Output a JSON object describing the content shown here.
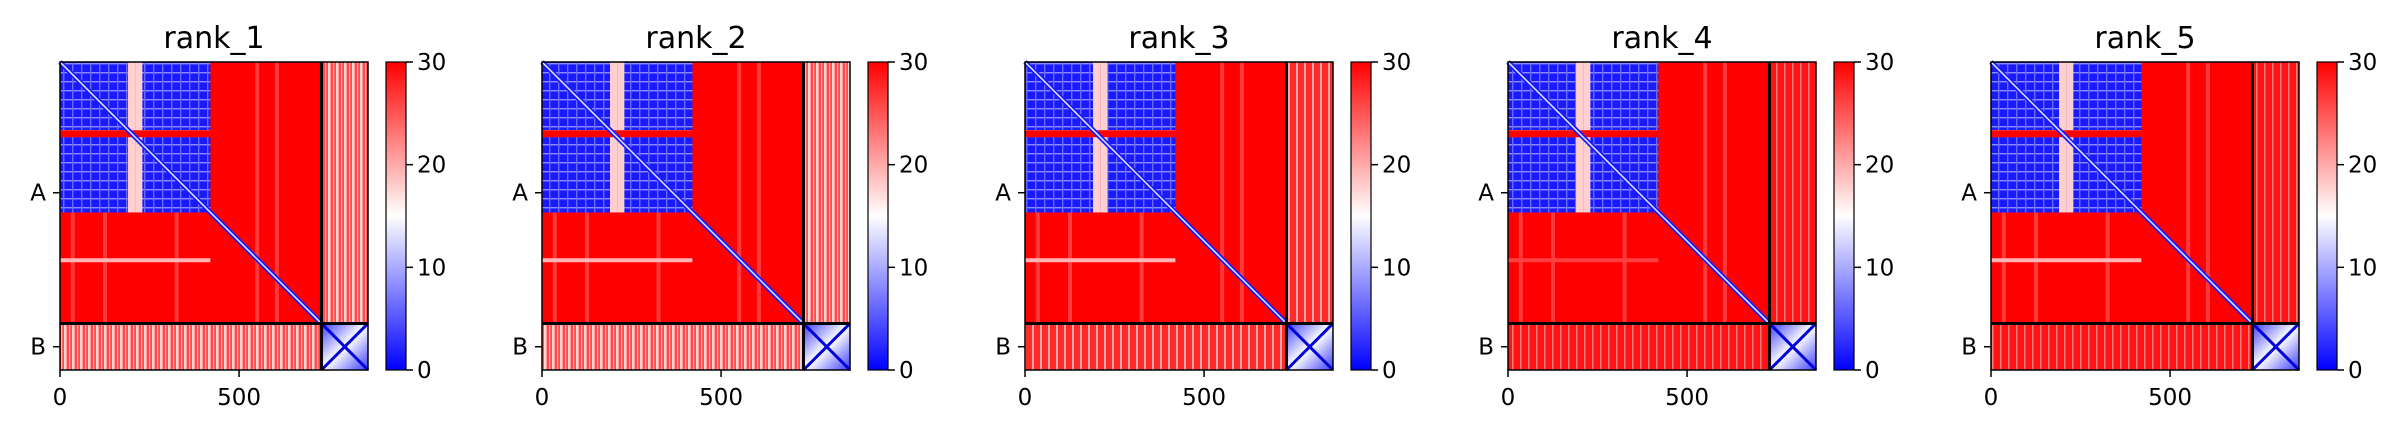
{
  "chart_data": [
    {
      "type": "heatmap",
      "title": "rank_1",
      "xlabel": "",
      "ylabel": "",
      "x_ticks": [
        0,
        500
      ],
      "x_tick_labels": [
        "0",
        "500"
      ],
      "y_tick_labels": [
        "A",
        "B"
      ],
      "chains": [
        {
          "name": "A",
          "start": 0,
          "end": 730
        },
        {
          "name": "B",
          "start": 730,
          "end": 860
        }
      ],
      "total_residues": 860,
      "domains": [
        {
          "start": 0,
          "end": 190
        },
        {
          "start": 210,
          "end": 420
        }
      ],
      "colorscale": {
        "min": 0,
        "max": 30,
        "colors": [
          "#0000ff",
          "#ffffff",
          "#ff0000"
        ],
        "ticks": [
          0,
          10,
          20,
          30
        ],
        "tick_labels": [
          "0",
          "10",
          "20",
          "30"
        ]
      },
      "values": {
        "domain_pae": 3,
        "background_pae": 30
      },
      "partner_stripe": "strong"
    },
    {
      "type": "heatmap",
      "title": "rank_2",
      "xlabel": "",
      "ylabel": "",
      "x_ticks": [
        0,
        500
      ],
      "x_tick_labels": [
        "0",
        "500"
      ],
      "y_tick_labels": [
        "A",
        "B"
      ],
      "chains": [
        {
          "name": "A",
          "start": 0,
          "end": 730
        },
        {
          "name": "B",
          "start": 730,
          "end": 860
        }
      ],
      "total_residues": 860,
      "domains": [
        {
          "start": 0,
          "end": 190
        },
        {
          "start": 210,
          "end": 420
        }
      ],
      "colorscale": {
        "min": 0,
        "max": 30,
        "colors": [
          "#0000ff",
          "#ffffff",
          "#ff0000"
        ],
        "ticks": [
          0,
          10,
          20,
          30
        ],
        "tick_labels": [
          "0",
          "10",
          "20",
          "30"
        ]
      },
      "values": {
        "domain_pae": 3,
        "background_pae": 30
      },
      "partner_stripe": "strong"
    },
    {
      "type": "heatmap",
      "title": "rank_3",
      "xlabel": "",
      "ylabel": "",
      "x_ticks": [
        0,
        500
      ],
      "x_tick_labels": [
        "0",
        "500"
      ],
      "y_tick_labels": [
        "A",
        "B"
      ],
      "chains": [
        {
          "name": "A",
          "start": 0,
          "end": 730
        },
        {
          "name": "B",
          "start": 730,
          "end": 860
        }
      ],
      "total_residues": 860,
      "domains": [
        {
          "start": 0,
          "end": 190
        },
        {
          "start": 210,
          "end": 420
        }
      ],
      "colorscale": {
        "min": 0,
        "max": 30,
        "colors": [
          "#0000ff",
          "#ffffff",
          "#ff0000"
        ],
        "ticks": [
          0,
          10,
          20,
          30
        ],
        "tick_labels": [
          "0",
          "10",
          "20",
          "30"
        ]
      },
      "values": {
        "domain_pae": 3,
        "background_pae": 30
      },
      "partner_stripe": "medium"
    },
    {
      "type": "heatmap",
      "title": "rank_4",
      "xlabel": "",
      "ylabel": "",
      "x_ticks": [
        0,
        500
      ],
      "x_tick_labels": [
        "0",
        "500"
      ],
      "y_tick_labels": [
        "A",
        "B"
      ],
      "chains": [
        {
          "name": "A",
          "start": 0,
          "end": 730
        },
        {
          "name": "B",
          "start": 730,
          "end": 860
        }
      ],
      "total_residues": 860,
      "domains": [
        {
          "start": 0,
          "end": 190
        },
        {
          "start": 210,
          "end": 420
        }
      ],
      "colorscale": {
        "min": 0,
        "max": 30,
        "colors": [
          "#0000ff",
          "#ffffff",
          "#ff0000"
        ],
        "ticks": [
          0,
          10,
          20,
          30
        ],
        "tick_labels": [
          "0",
          "10",
          "20",
          "30"
        ]
      },
      "values": {
        "domain_pae": 3,
        "background_pae": 30
      },
      "partner_stripe": "weak"
    },
    {
      "type": "heatmap",
      "title": "rank_5",
      "xlabel": "",
      "ylabel": "",
      "x_ticks": [
        0,
        500
      ],
      "x_tick_labels": [
        "0",
        "500"
      ],
      "y_tick_labels": [
        "A",
        "B"
      ],
      "chains": [
        {
          "name": "A",
          "start": 0,
          "end": 730
        },
        {
          "name": "B",
          "start": 730,
          "end": 860
        }
      ],
      "total_residues": 860,
      "domains": [
        {
          "start": 0,
          "end": 190
        },
        {
          "start": 210,
          "end": 420
        }
      ],
      "colorscale": {
        "min": 0,
        "max": 30,
        "colors": [
          "#0000ff",
          "#ffffff",
          "#ff0000"
        ],
        "ticks": [
          0,
          10,
          20,
          30
        ],
        "tick_labels": [
          "0",
          "10",
          "20",
          "30"
        ]
      },
      "values": {
        "domain_pae": 3,
        "background_pae": 30
      },
      "partner_stripe": "weak"
    }
  ]
}
